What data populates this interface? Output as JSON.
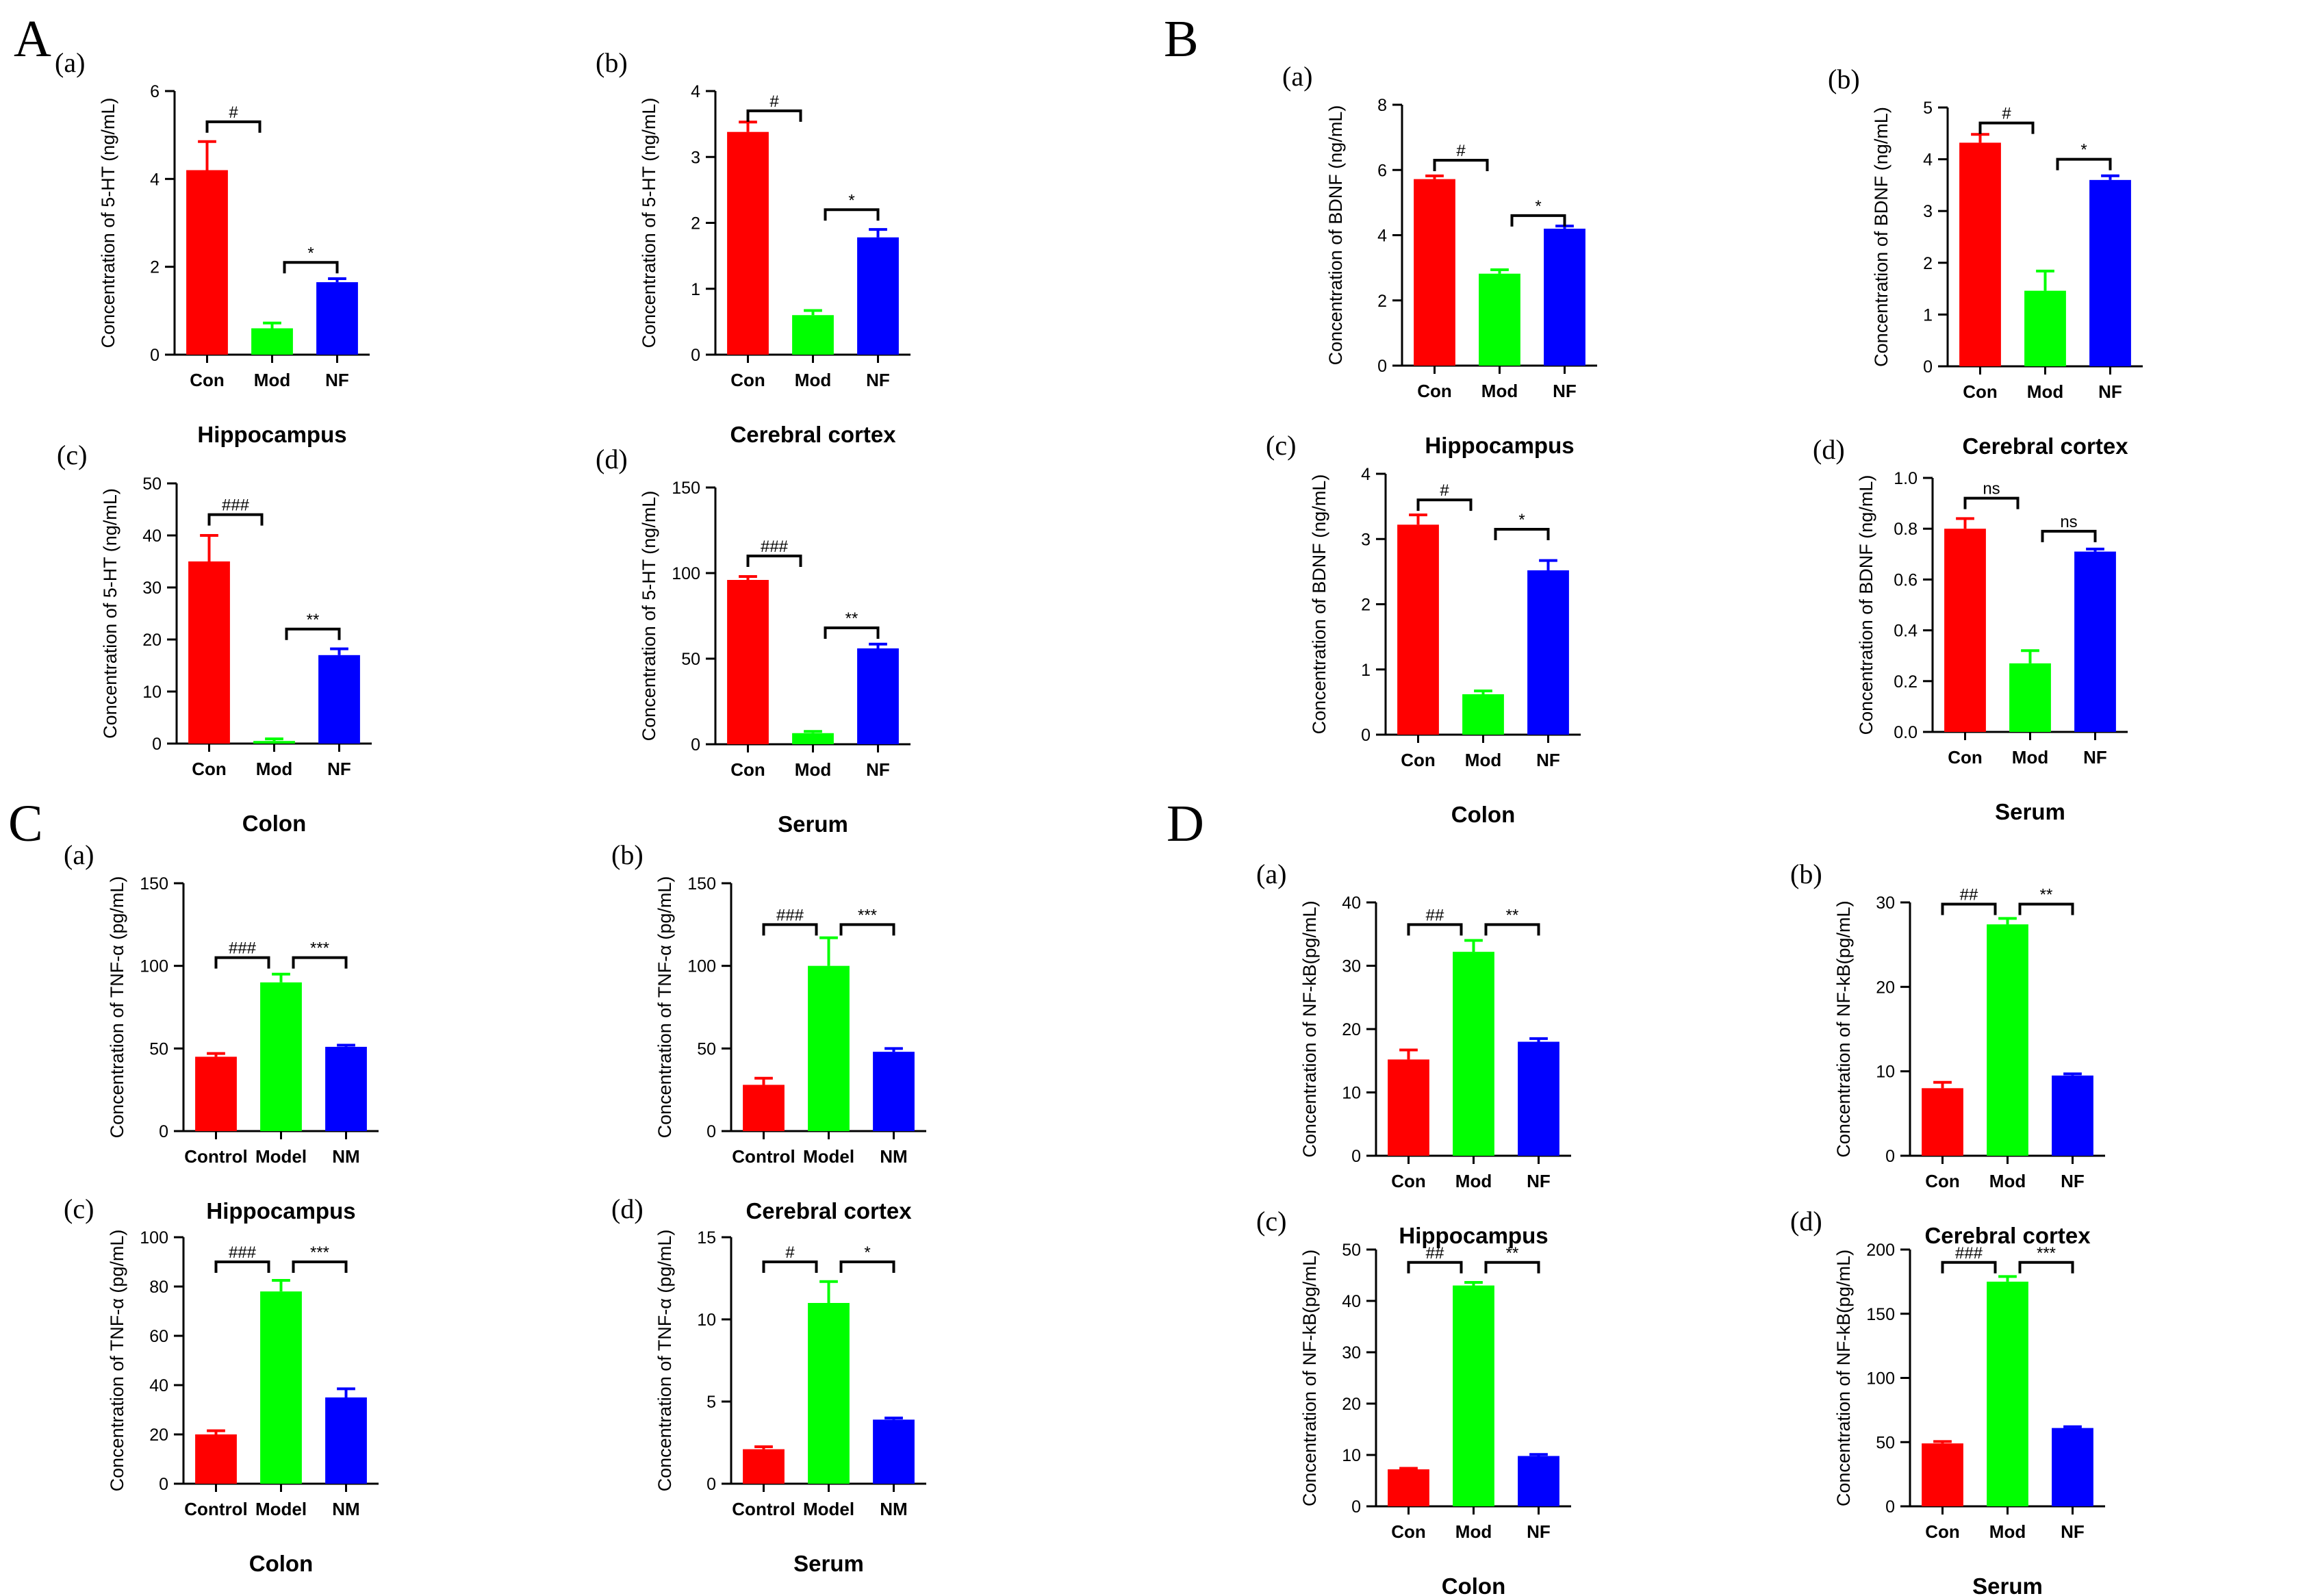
{
  "sections": [
    {
      "letter": "A"
    },
    {
      "letter": "B"
    },
    {
      "letter": "C"
    },
    {
      "letter": "D"
    }
  ],
  "colors": {
    "Con": "#ff0000",
    "Mod": "#00ff00",
    "NF": "#0000ff",
    "Control": "#ff0000",
    "Model": "#00ff00",
    "NM": "#0000ff"
  },
  "chart_data": [
    {
      "panel": "A",
      "sub": "(a)",
      "type": "bar",
      "title": "Hippocampus",
      "ylabel": "Concentration of 5-HT (ng/mL)",
      "categories": [
        "Con",
        "Mod",
        "NF"
      ],
      "values": [
        4.2,
        0.6,
        1.65
      ],
      "errors": [
        0.65,
        0.12,
        0.08
      ],
      "ylim": [
        0,
        6
      ],
      "yticks": [
        "0",
        "2",
        "4",
        "6"
      ],
      "sig": [
        {
          "from": 0,
          "to": 1,
          "y": 5.3,
          "label": "#"
        },
        {
          "from": 1,
          "to": 2,
          "y": 2.1,
          "label": "*"
        }
      ]
    },
    {
      "panel": "A",
      "sub": "(b)",
      "type": "bar",
      "title": "Cerebral cortex",
      "ylabel": "Concentration of 5-HT (ng/mL)",
      "categories": [
        "Con",
        "Mod",
        "NF"
      ],
      "values": [
        3.38,
        0.6,
        1.78
      ],
      "errors": [
        0.15,
        0.07,
        0.12
      ],
      "ylim": [
        0,
        4
      ],
      "yticks": [
        "0",
        "1",
        "2",
        "3",
        "4"
      ],
      "sig": [
        {
          "from": 0,
          "to": 1,
          "y": 3.7,
          "label": "#"
        },
        {
          "from": 1,
          "to": 2,
          "y": 2.2,
          "label": "*"
        }
      ]
    },
    {
      "panel": "A",
      "sub": "(c)",
      "type": "bar",
      "title": "Colon",
      "ylabel": "Concentration of 5-HT (ng/mL)",
      "categories": [
        "Con",
        "Mod",
        "NF"
      ],
      "values": [
        35,
        0.5,
        17
      ],
      "errors": [
        5,
        0.4,
        1.2
      ],
      "ylim": [
        0,
        50
      ],
      "yticks": [
        "0",
        "10",
        "20",
        "30",
        "40",
        "50"
      ],
      "sig": [
        {
          "from": 0,
          "to": 1,
          "y": 44,
          "label": "###"
        },
        {
          "from": 1,
          "to": 2,
          "y": 22,
          "label": "**"
        }
      ]
    },
    {
      "panel": "A",
      "sub": "(d)",
      "type": "bar",
      "title": "Serum",
      "ylabel": "Concentration of 5-HT (ng/mL)",
      "categories": [
        "Con",
        "Mod",
        "NF"
      ],
      "values": [
        96,
        6.5,
        56
      ],
      "errors": [
        2,
        1,
        2.5
      ],
      "ylim": [
        0,
        150
      ],
      "yticks": [
        "0",
        "50",
        "100",
        "150"
      ],
      "sig": [
        {
          "from": 0,
          "to": 1,
          "y": 110,
          "label": "###"
        },
        {
          "from": 1,
          "to": 2,
          "y": 68,
          "label": "**"
        }
      ]
    },
    {
      "panel": "B",
      "sub": "(a)",
      "type": "bar",
      "title": "Hippocampus",
      "ylabel": "Concentration of BDNF (ng/mL)",
      "categories": [
        "Con",
        "Mod",
        "NF"
      ],
      "values": [
        5.72,
        2.82,
        4.2
      ],
      "errors": [
        0.1,
        0.12,
        0.08
      ],
      "ylim": [
        0,
        8
      ],
      "yticks": [
        "0",
        "2",
        "4",
        "6",
        "8"
      ],
      "sig": [
        {
          "from": 0,
          "to": 1,
          "y": 6.3,
          "label": "#"
        },
        {
          "from": 1,
          "to": 2,
          "y": 4.6,
          "label": "*"
        }
      ]
    },
    {
      "panel": "B",
      "sub": "(b)",
      "type": "bar",
      "title": "Cerebral cortex",
      "ylabel": "Concentration of BDNF (ng/mL)",
      "categories": [
        "Con",
        "Mod",
        "NF"
      ],
      "values": [
        4.32,
        1.46,
        3.6
      ],
      "errors": [
        0.16,
        0.38,
        0.08
      ],
      "ylim": [
        0,
        5
      ],
      "yticks": [
        "0",
        "1",
        "2",
        "3",
        "4",
        "5"
      ],
      "sig": [
        {
          "from": 0,
          "to": 1,
          "y": 4.7,
          "label": "#"
        },
        {
          "from": 1,
          "to": 2,
          "y": 4.0,
          "label": "*"
        }
      ]
    },
    {
      "panel": "B",
      "sub": "(c)",
      "type": "bar",
      "title": "Colon",
      "ylabel": "Concentration of BDNF (ng/mL)",
      "categories": [
        "Con",
        "Mod",
        "NF"
      ],
      "values": [
        3.22,
        0.62,
        2.52
      ],
      "errors": [
        0.15,
        0.05,
        0.15
      ],
      "ylim": [
        0,
        4
      ],
      "yticks": [
        "0",
        "1",
        "2",
        "3",
        "4"
      ],
      "sig": [
        {
          "from": 0,
          "to": 1,
          "y": 3.6,
          "label": "#"
        },
        {
          "from": 1,
          "to": 2,
          "y": 3.15,
          "label": "*"
        }
      ]
    },
    {
      "panel": "B",
      "sub": "(d)",
      "type": "bar",
      "title": "Serum",
      "ylabel": "Concentration of BDNF (ng/mL)",
      "categories": [
        "Con",
        "Mod",
        "NF"
      ],
      "values": [
        0.8,
        0.27,
        0.71
      ],
      "errors": [
        0.04,
        0.05,
        0.01
      ],
      "ylim": [
        0,
        1.0
      ],
      "yticks": [
        "0.0",
        "0.2",
        "0.4",
        "0.6",
        "0.8",
        "1.0"
      ],
      "sig": [
        {
          "from": 0,
          "to": 1,
          "y": 0.92,
          "label": "ns"
        },
        {
          "from": 1,
          "to": 2,
          "y": 0.79,
          "label": "ns"
        }
      ]
    },
    {
      "panel": "C",
      "sub": "(a)",
      "type": "bar",
      "title": "Hippocampus",
      "ylabel": "Concentration of TNF-α (pg/mL)",
      "categories": [
        "Control",
        "Model",
        "NM"
      ],
      "values": [
        45,
        90,
        51
      ],
      "errors": [
        2,
        5,
        1
      ],
      "ylim": [
        0,
        150
      ],
      "yticks": [
        "0",
        "50",
        "100",
        "150"
      ],
      "sig": [
        {
          "from": 0,
          "to": 1,
          "y": 105,
          "label": "###"
        },
        {
          "from": 1,
          "to": 2,
          "y": 105,
          "label": "***"
        }
      ]
    },
    {
      "panel": "C",
      "sub": "(b)",
      "type": "bar",
      "title": "Cerebral cortex",
      "ylabel": "Concentration of TNF-α (pg/mL)",
      "categories": [
        "Control",
        "Model",
        "NM"
      ],
      "values": [
        28,
        100,
        48
      ],
      "errors": [
        4,
        17,
        2
      ],
      "ylim": [
        0,
        150
      ],
      "yticks": [
        "0",
        "50",
        "100",
        "150"
      ],
      "sig": [
        {
          "from": 0,
          "to": 1,
          "y": 125,
          "label": "###"
        },
        {
          "from": 1,
          "to": 2,
          "y": 125,
          "label": "***"
        }
      ]
    },
    {
      "panel": "C",
      "sub": "(c)",
      "type": "bar",
      "title": "Colon",
      "ylabel": "Concentration of TNF-α (pg/mL)",
      "categories": [
        "Control",
        "Model",
        "NM"
      ],
      "values": [
        20,
        78,
        35
      ],
      "errors": [
        1.5,
        4.5,
        3.5
      ],
      "ylim": [
        0,
        100
      ],
      "yticks": [
        "0",
        "20",
        "40",
        "60",
        "80",
        "100"
      ],
      "sig": [
        {
          "from": 0,
          "to": 1,
          "y": 90,
          "label": "###"
        },
        {
          "from": 1,
          "to": 2,
          "y": 90,
          "label": "***"
        }
      ]
    },
    {
      "panel": "C",
      "sub": "(d)",
      "type": "bar",
      "title": "Serum",
      "ylabel": "Concentration of TNF-α (pg/mL)",
      "categories": [
        "Control",
        "Model",
        "NM"
      ],
      "values": [
        2.1,
        11,
        3.9
      ],
      "errors": [
        0.15,
        1.3,
        0.1
      ],
      "ylim": [
        0,
        15
      ],
      "yticks": [
        "0",
        "5",
        "10",
        "15"
      ],
      "sig": [
        {
          "from": 0,
          "to": 1,
          "y": 13.5,
          "label": "#"
        },
        {
          "from": 1,
          "to": 2,
          "y": 13.5,
          "label": "*"
        }
      ]
    },
    {
      "panel": "D",
      "sub": "(a)",
      "type": "bar",
      "title": "Hippocampus",
      "ylabel": "Concentration of NF-kB(pg/mL)",
      "categories": [
        "Con",
        "Mod",
        "NF"
      ],
      "values": [
        15.2,
        32.2,
        18
      ],
      "errors": [
        1.5,
        1.8,
        0.5
      ],
      "ylim": [
        0,
        40
      ],
      "yticks": [
        "0",
        "10",
        "20",
        "30",
        "40"
      ],
      "sig": [
        {
          "from": 0,
          "to": 1,
          "y": 36.5,
          "label": "##"
        },
        {
          "from": 1,
          "to": 2,
          "y": 36.5,
          "label": "**"
        }
      ]
    },
    {
      "panel": "D",
      "sub": "(b)",
      "type": "bar",
      "title": "Cerebral cortex",
      "ylabel": "Concentration of NF-kB(pg/mL)",
      "categories": [
        "Con",
        "Mod",
        "NF"
      ],
      "values": [
        8,
        27.4,
        9.5
      ],
      "errors": [
        0.7,
        0.7,
        0.2
      ],
      "ylim": [
        0,
        30
      ],
      "yticks": [
        "0",
        "10",
        "20",
        "30"
      ],
      "sig": [
        {
          "from": 0,
          "to": 1,
          "y": 29.8,
          "label": "##"
        },
        {
          "from": 1,
          "to": 2,
          "y": 29.8,
          "label": "**"
        }
      ]
    },
    {
      "panel": "D",
      "sub": "(c)",
      "type": "bar",
      "title": "Colon",
      "ylabel": "Concentration of NF-kB(pg/mL)",
      "categories": [
        "Con",
        "Mod",
        "NF"
      ],
      "values": [
        7.2,
        43,
        9.8
      ],
      "errors": [
        0.2,
        0.6,
        0.3
      ],
      "ylim": [
        0,
        50
      ],
      "yticks": [
        "0",
        "10",
        "20",
        "30",
        "40",
        "50"
      ],
      "sig": [
        {
          "from": 0,
          "to": 1,
          "y": 47.5,
          "label": "##"
        },
        {
          "from": 1,
          "to": 2,
          "y": 47.5,
          "label": "**"
        }
      ]
    },
    {
      "panel": "D",
      "sub": "(d)",
      "type": "bar",
      "title": "Serum",
      "ylabel": "Concentration of NF-kB(pg/mL)",
      "categories": [
        "Con",
        "Mod",
        "NF"
      ],
      "values": [
        49,
        175,
        61
      ],
      "errors": [
        1.5,
        4,
        1
      ],
      "ylim": [
        0,
        200
      ],
      "yticks": [
        "0",
        "50",
        "100",
        "150",
        "200"
      ],
      "sig": [
        {
          "from": 0,
          "to": 1,
          "y": 190,
          "label": "###"
        },
        {
          "from": 1,
          "to": 2,
          "y": 190,
          "label": "***"
        }
      ]
    }
  ]
}
